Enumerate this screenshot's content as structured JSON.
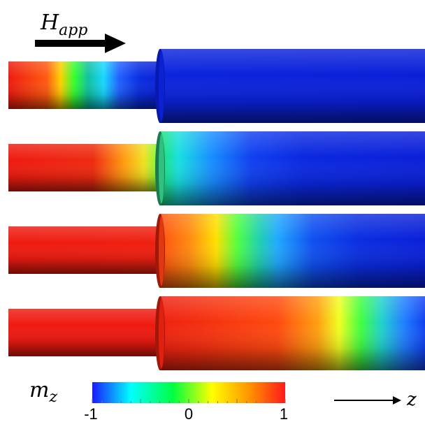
{
  "labels": {
    "field_symbol": "H",
    "field_subscript": "app",
    "colorbar_symbol": "m",
    "colorbar_subscript": "z",
    "axis_label": "z"
  },
  "colorbar": {
    "min_label": "-1",
    "mid_label": "0",
    "max_label": "1",
    "stops": [
      "#1a1aff",
      "#00ffff",
      "#00ff40",
      "#ffff00",
      "#ff9000",
      "#ff1a1a"
    ]
  },
  "colors": {
    "minus_one": "#0a1fd8",
    "plus_one": "#ee1a10",
    "arrow": "#000000"
  },
  "panels": [
    {
      "name": "step-1",
      "domain_wall_fraction": 0.32
    },
    {
      "name": "step-2",
      "domain_wall_fraction": 0.55
    },
    {
      "name": "step-3",
      "domain_wall_fraction": 0.66
    },
    {
      "name": "step-4",
      "domain_wall_fraction": 0.86
    }
  ]
}
